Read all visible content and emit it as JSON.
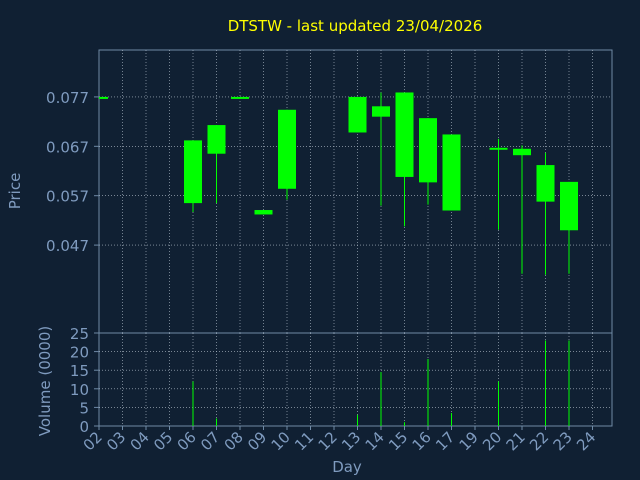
{
  "title": "DTSTW - last updated 23/04/2026",
  "colors": {
    "background": "#102033",
    "panel": "#102033",
    "frame": "#6f8aa6",
    "grid": "#b8c4d0",
    "text": "#7f9bbf",
    "title": "#ffff00",
    "candle": "#00ff00"
  },
  "chart_data": [
    {
      "type": "candlestick",
      "ylabel": "Price",
      "grid": true,
      "ylim": [
        0.0292,
        0.0865
      ],
      "yticks": [
        0.077,
        0.067,
        0.057,
        0.047
      ],
      "ytick_labels": [
        "0.077",
        "0.067",
        "0.057",
        "0.047"
      ],
      "x": [
        "02",
        "03",
        "04",
        "05",
        "06",
        "07",
        "08",
        "09",
        "10",
        "11",
        "12",
        "13",
        "14",
        "15",
        "16",
        "17",
        "19",
        "20",
        "21",
        "22",
        "23",
        "24"
      ],
      "candles": [
        {
          "day": "02",
          "open": 0.077,
          "high": 0.077,
          "low": 0.077,
          "close": 0.077
        },
        {
          "day": "06",
          "open": 0.0555,
          "high": 0.0682,
          "low": 0.0537,
          "close": 0.0682
        },
        {
          "day": "07",
          "open": 0.0655,
          "high": 0.0713,
          "low": 0.0555,
          "close": 0.0713
        },
        {
          "day": "08",
          "open": 0.077,
          "high": 0.077,
          "low": 0.077,
          "close": 0.077
        },
        {
          "day": "09",
          "open": 0.0532,
          "high": 0.0541,
          "low": 0.0532,
          "close": 0.0541
        },
        {
          "day": "10",
          "open": 0.0584,
          "high": 0.0744,
          "low": 0.0562,
          "close": 0.0744
        },
        {
          "day": "13",
          "open": 0.077,
          "high": 0.077,
          "low": 0.0698,
          "close": 0.0698
        },
        {
          "day": "14",
          "open": 0.0751,
          "high": 0.0779,
          "low": 0.055,
          "close": 0.073
        },
        {
          "day": "15",
          "open": 0.0779,
          "high": 0.0779,
          "low": 0.0508,
          "close": 0.0608
        },
        {
          "day": "16",
          "open": 0.0727,
          "high": 0.0727,
          "low": 0.0552,
          "close": 0.0597
        },
        {
          "day": "17",
          "open": 0.0694,
          "high": 0.0694,
          "low": 0.054,
          "close": 0.054
        },
        {
          "day": "20",
          "open": 0.0667,
          "high": 0.0685,
          "low": 0.0501,
          "close": 0.0665
        },
        {
          "day": "21",
          "open": 0.0665,
          "high": 0.0672,
          "low": 0.0412,
          "close": 0.0652
        },
        {
          "day": "22",
          "open": 0.0632,
          "high": 0.0657,
          "low": 0.041,
          "close": 0.0558
        },
        {
          "day": "23",
          "open": 0.0598,
          "high": 0.0598,
          "low": 0.0412,
          "close": 0.05
        }
      ]
    },
    {
      "type": "bar",
      "ylabel": "Volume (0000)",
      "xlabel": "Day",
      "grid": true,
      "ylim": [
        0,
        25
      ],
      "yticks": [
        0,
        5,
        10,
        15,
        20,
        25
      ],
      "categories": [
        "02",
        "06",
        "07",
        "08",
        "09",
        "10",
        "13",
        "14",
        "15",
        "16",
        "17",
        "20",
        "21",
        "22",
        "23"
      ],
      "values": [
        0,
        12,
        2,
        0,
        0,
        0,
        3,
        14.5,
        1,
        18,
        3.5,
        12,
        0,
        23,
        23
      ]
    }
  ]
}
